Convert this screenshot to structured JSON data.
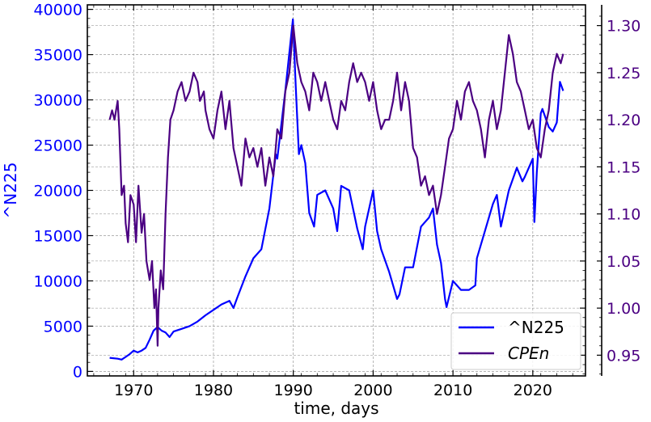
{
  "chart_data": {
    "type": "line",
    "xlabel": "time, days",
    "ylabel_left": "^N225",
    "ylabel_right": "",
    "xlim": [
      1964.2,
      2026.6
    ],
    "ylim_left": [
      -500,
      40500
    ],
    "ylim_right": [
      0.928,
      1.322
    ],
    "x_ticks": [
      1970,
      1980,
      1990,
      2000,
      2010,
      2020
    ],
    "y_left_ticks": [
      0,
      5000,
      10000,
      15000,
      20000,
      25000,
      30000,
      35000,
      40000
    ],
    "y_right_ticks": [
      0.95,
      1.0,
      1.05,
      1.1,
      1.15,
      1.2,
      1.25,
      1.3
    ],
    "grid": true,
    "legend_position": "lower-right",
    "colors": {
      "left_axis": "#0000ff",
      "right_axis": "#4b0082"
    },
    "series": [
      {
        "name": "^N225",
        "axis": "left",
        "color": "#0000ff",
        "x": [
          1967.0,
          1968.0,
          1968.5,
          1969.0,
          1969.5,
          1970.0,
          1970.5,
          1971.0,
          1971.5,
          1972.0,
          1972.5,
          1973.0,
          1973.5,
          1974.0,
          1974.5,
          1975.0,
          1976.0,
          1977.0,
          1978.0,
          1979.0,
          1980.0,
          1981.0,
          1982.0,
          1982.5,
          1983.0,
          1984.0,
          1985.0,
          1986.0,
          1987.0,
          1987.8,
          1988.0,
          1989.0,
          1989.95,
          1990.3,
          1990.7,
          1991.0,
          1991.5,
          1992.0,
          1992.6,
          1993.0,
          1994.0,
          1995.0,
          1995.5,
          1996.0,
          1997.0,
          1998.0,
          1998.7,
          1999.0,
          2000.0,
          2000.5,
          2001.0,
          2002.0,
          2003.0,
          2003.3,
          2004.0,
          2005.0,
          2006.0,
          2007.0,
          2007.5,
          2008.0,
          2008.5,
          2009.0,
          2009.2,
          2010.0,
          2011.0,
          2012.0,
          2012.8,
          2013.0,
          2014.0,
          2015.0,
          2015.5,
          2016.0,
          2017.0,
          2018.0,
          2018.7,
          2019.0,
          2020.0,
          2020.2,
          2020.5,
          2021.0,
          2021.2,
          2022.0,
          2022.5,
          2023.0,
          2023.4,
          2023.8
        ],
        "y": [
          1500,
          1400,
          1300,
          1600,
          1900,
          2300,
          2100,
          2300,
          2600,
          3500,
          4500,
          4900,
          4500,
          4300,
          3800,
          4400,
          4700,
          5000,
          5500,
          6200,
          6800,
          7400,
          7800,
          7000,
          8200,
          10500,
          12500,
          13500,
          18000,
          24000,
          23500,
          31000,
          38900,
          31500,
          24000,
          25000,
          23000,
          17500,
          16000,
          19500,
          20000,
          18000,
          15500,
          20500,
          20000,
          15800,
          13500,
          16000,
          20000,
          15500,
          13500,
          11000,
          8000,
          8500,
          11500,
          11500,
          16000,
          17000,
          18000,
          14000,
          12000,
          8000,
          7100,
          10000,
          9000,
          9000,
          9500,
          12500,
          15500,
          18500,
          19500,
          16000,
          20000,
          22500,
          21000,
          21500,
          23500,
          16500,
          22000,
          28500,
          29000,
          27000,
          26500,
          27500,
          32000,
          31000
        ]
      },
      {
        "name": "CPEn",
        "axis": "right",
        "color": "#4b0082",
        "x": [
          1967.0,
          1967.3,
          1967.6,
          1968.0,
          1968.2,
          1968.5,
          1968.8,
          1969.0,
          1969.3,
          1969.6,
          1970.0,
          1970.3,
          1970.6,
          1971.0,
          1971.3,
          1971.6,
          1972.0,
          1972.3,
          1972.6,
          1972.8,
          1973.0,
          1973.1,
          1973.4,
          1973.7,
          1974.0,
          1974.3,
          1974.6,
          1975.0,
          1975.5,
          1976.0,
          1976.5,
          1977.0,
          1977.5,
          1978.0,
          1978.3,
          1978.8,
          1979.0,
          1979.5,
          1980.0,
          1980.5,
          1981.0,
          1981.5,
          1982.0,
          1982.5,
          1983.0,
          1983.5,
          1984.0,
          1984.5,
          1985.0,
          1985.5,
          1986.0,
          1986.5,
          1987.0,
          1987.5,
          1988.0,
          1988.5,
          1989.0,
          1989.5,
          1990.0,
          1990.5,
          1991.0,
          1991.5,
          1992.0,
          1992.5,
          1993.0,
          1993.5,
          1994.0,
          1994.5,
          1995.0,
          1995.5,
          1996.0,
          1996.5,
          1997.0,
          1997.5,
          1998.0,
          1998.5,
          1999.0,
          1999.5,
          2000.0,
          2000.5,
          2001.0,
          2001.5,
          2002.0,
          2002.5,
          2003.0,
          2003.5,
          2004.0,
          2004.5,
          2005.0,
          2005.5,
          2006.0,
          2006.5,
          2007.0,
          2007.5,
          2008.0,
          2008.5,
          2009.0,
          2009.5,
          2010.0,
          2010.5,
          2011.0,
          2011.5,
          2012.0,
          2012.5,
          2013.0,
          2013.5,
          2014.0,
          2014.5,
          2015.0,
          2015.5,
          2016.0,
          2016.5,
          2017.0,
          2017.5,
          2018.0,
          2018.5,
          2019.0,
          2019.5,
          2020.0,
          2020.5,
          2021.0,
          2021.5,
          2022.0,
          2022.5,
          2023.0,
          2023.5,
          2023.8
        ],
        "y": [
          1.2,
          1.21,
          1.2,
          1.22,
          1.19,
          1.12,
          1.13,
          1.09,
          1.07,
          1.12,
          1.11,
          1.07,
          1.13,
          1.08,
          1.1,
          1.05,
          1.03,
          1.05,
          1.0,
          1.02,
          0.96,
          1.0,
          1.04,
          1.02,
          1.1,
          1.16,
          1.2,
          1.21,
          1.23,
          1.24,
          1.22,
          1.23,
          1.25,
          1.24,
          1.22,
          1.23,
          1.21,
          1.19,
          1.18,
          1.21,
          1.23,
          1.19,
          1.22,
          1.17,
          1.15,
          1.13,
          1.18,
          1.16,
          1.17,
          1.15,
          1.17,
          1.13,
          1.16,
          1.14,
          1.19,
          1.18,
          1.23,
          1.25,
          1.3,
          1.26,
          1.24,
          1.23,
          1.21,
          1.25,
          1.24,
          1.22,
          1.24,
          1.22,
          1.2,
          1.19,
          1.22,
          1.21,
          1.24,
          1.26,
          1.24,
          1.25,
          1.24,
          1.22,
          1.24,
          1.21,
          1.19,
          1.2,
          1.2,
          1.22,
          1.25,
          1.21,
          1.24,
          1.22,
          1.17,
          1.16,
          1.13,
          1.14,
          1.12,
          1.13,
          1.1,
          1.12,
          1.15,
          1.18,
          1.19,
          1.22,
          1.2,
          1.23,
          1.24,
          1.22,
          1.21,
          1.19,
          1.16,
          1.2,
          1.22,
          1.19,
          1.21,
          1.25,
          1.29,
          1.27,
          1.24,
          1.23,
          1.21,
          1.19,
          1.2,
          1.17,
          1.16,
          1.19,
          1.21,
          1.25,
          1.27,
          1.26,
          1.27
        ]
      }
    ]
  }
}
